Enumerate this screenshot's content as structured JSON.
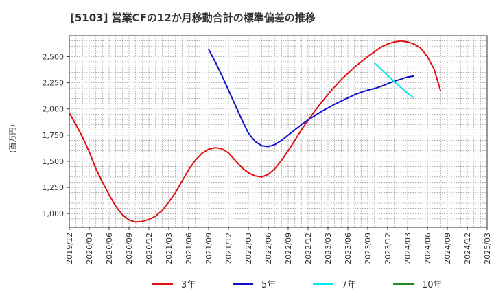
{
  "chart_data": {
    "type": "line",
    "title": "[5103]  営業CFの12か月移動合計の標準偏差の推移",
    "ylabel": "(百万円)",
    "xlabel": "",
    "x_ticks": [
      "2019/12",
      "2020/03",
      "2020/06",
      "2020/09",
      "2020/12",
      "2021/03",
      "2021/06",
      "2021/09",
      "2021/12",
      "2022/03",
      "2022/06",
      "2022/09",
      "2022/12",
      "2023/03",
      "2023/06",
      "2023/09",
      "2023/12",
      "2024/03",
      "2024/06",
      "2024/09",
      "2024/12",
      "2025/03"
    ],
    "y_ticks": [
      "1,000",
      "1,250",
      "1,500",
      "1,750",
      "2,000",
      "2,250",
      "2,500"
    ],
    "y_tick_values": [
      1000,
      1250,
      1500,
      1750,
      2000,
      2250,
      2500
    ],
    "xlim": [
      "2019/12",
      "2025/03"
    ],
    "ylim": [
      870,
      2700
    ],
    "grid": true,
    "legend_position": "bottom",
    "series": [
      {
        "name": "3年",
        "color": "#dd1111",
        "points": [
          [
            "2019/12",
            1960
          ],
          [
            "2020/01",
            1850
          ],
          [
            "2020/02",
            1730
          ],
          [
            "2020/03",
            1590
          ],
          [
            "2020/04",
            1430
          ],
          [
            "2020/05",
            1300
          ],
          [
            "2020/06",
            1180
          ],
          [
            "2020/07",
            1070
          ],
          [
            "2020/08",
            990
          ],
          [
            "2020/09",
            940
          ],
          [
            "2020/10",
            920
          ],
          [
            "2020/11",
            925
          ],
          [
            "2020/12",
            945
          ],
          [
            "2021/01",
            975
          ],
          [
            "2021/02",
            1030
          ],
          [
            "2021/03",
            1110
          ],
          [
            "2021/04",
            1200
          ],
          [
            "2021/05",
            1310
          ],
          [
            "2021/06",
            1420
          ],
          [
            "2021/07",
            1510
          ],
          [
            "2021/08",
            1575
          ],
          [
            "2021/09",
            1615
          ],
          [
            "2021/10",
            1630
          ],
          [
            "2021/11",
            1620
          ],
          [
            "2021/12",
            1580
          ],
          [
            "2022/01",
            1510
          ],
          [
            "2022/02",
            1440
          ],
          [
            "2022/03",
            1390
          ],
          [
            "2022/04",
            1360
          ],
          [
            "2022/05",
            1350
          ],
          [
            "2022/06",
            1375
          ],
          [
            "2022/07",
            1430
          ],
          [
            "2022/08",
            1510
          ],
          [
            "2022/09",
            1600
          ],
          [
            "2022/10",
            1700
          ],
          [
            "2022/11",
            1800
          ],
          [
            "2022/12",
            1890
          ],
          [
            "2023/01",
            1980
          ],
          [
            "2023/02",
            2060
          ],
          [
            "2023/03",
            2140
          ],
          [
            "2023/04",
            2210
          ],
          [
            "2023/05",
            2280
          ],
          [
            "2023/06",
            2340
          ],
          [
            "2023/07",
            2400
          ],
          [
            "2023/08",
            2450
          ],
          [
            "2023/09",
            2500
          ],
          [
            "2023/10",
            2545
          ],
          [
            "2023/11",
            2590
          ],
          [
            "2023/12",
            2620
          ],
          [
            "2024/01",
            2640
          ],
          [
            "2024/02",
            2650
          ],
          [
            "2024/03",
            2640
          ],
          [
            "2024/04",
            2620
          ],
          [
            "2024/05",
            2580
          ],
          [
            "2024/06",
            2500
          ],
          [
            "2024/07",
            2380
          ],
          [
            "2024/08",
            2170
          ]
        ]
      },
      {
        "name": "5年",
        "color": "#1111cc",
        "points": [
          [
            "2021/09",
            2570
          ],
          [
            "2021/10",
            2450
          ],
          [
            "2021/11",
            2320
          ],
          [
            "2021/12",
            2180
          ],
          [
            "2022/01",
            2040
          ],
          [
            "2022/02",
            1900
          ],
          [
            "2022/03",
            1770
          ],
          [
            "2022/04",
            1690
          ],
          [
            "2022/05",
            1650
          ],
          [
            "2022/06",
            1640
          ],
          [
            "2022/07",
            1660
          ],
          [
            "2022/08",
            1700
          ],
          [
            "2022/09",
            1750
          ],
          [
            "2022/10",
            1800
          ],
          [
            "2022/11",
            1850
          ],
          [
            "2022/12",
            1895
          ],
          [
            "2023/01",
            1935
          ],
          [
            "2023/02",
            1975
          ],
          [
            "2023/03",
            2010
          ],
          [
            "2023/04",
            2045
          ],
          [
            "2023/05",
            2075
          ],
          [
            "2023/06",
            2105
          ],
          [
            "2023/07",
            2135
          ],
          [
            "2023/08",
            2160
          ],
          [
            "2023/09",
            2180
          ],
          [
            "2023/10",
            2195
          ],
          [
            "2023/11",
            2215
          ],
          [
            "2023/12",
            2240
          ],
          [
            "2024/01",
            2265
          ],
          [
            "2024/02",
            2285
          ],
          [
            "2024/03",
            2305
          ],
          [
            "2024/04",
            2315
          ]
        ]
      },
      {
        "name": "7年",
        "color": "#00e5ee",
        "points": [
          [
            "2023/10",
            2440
          ],
          [
            "2023/11",
            2380
          ],
          [
            "2023/12",
            2320
          ],
          [
            "2024/01",
            2260
          ],
          [
            "2024/02",
            2205
          ],
          [
            "2024/03",
            2150
          ],
          [
            "2024/04",
            2105
          ]
        ]
      },
      {
        "name": "10年",
        "color": "#228822",
        "points": []
      }
    ]
  }
}
